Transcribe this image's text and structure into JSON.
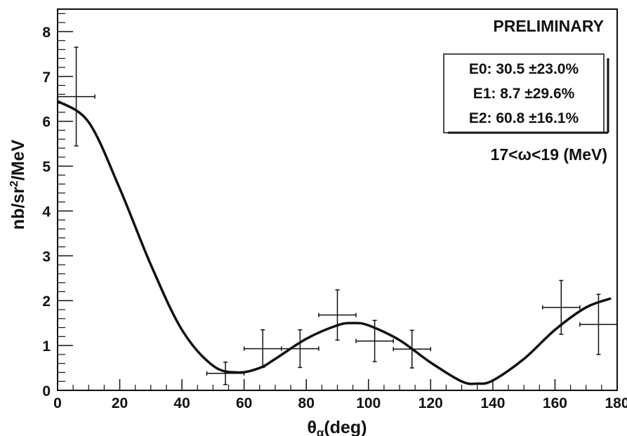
{
  "chart_data": {
    "type": "scatter",
    "title": "PRELIMINARY",
    "xlabel": "θα(deg)",
    "xlabel_main": "θ",
    "xlabel_sub": "α",
    "xlabel_suffix": "(deg)",
    "ylabel": "nb/sr²/MeV",
    "ylabel_pre": "nb/sr",
    "ylabel_sup": "2",
    "ylabel_post": "/MeV",
    "xlim": [
      0,
      180
    ],
    "ylim": [
      0,
      8.5
    ],
    "xticks": [
      "0",
      "20",
      "40",
      "60",
      "80",
      "100",
      "120",
      "140",
      "160",
      "180"
    ],
    "yticks": [
      "0",
      "1",
      "2",
      "3",
      "4",
      "5",
      "6",
      "7",
      "8"
    ],
    "grid": false,
    "legend_box": [
      "E0: 30.5 ±23.0%",
      "E1: 8.7 ±29.6%",
      "E2: 60.8 ±16.1%"
    ],
    "annotation": "17<ω<19 (MeV)",
    "series": [
      {
        "kind": "points-with-errors",
        "points": [
          {
            "x": 6,
            "y": 6.55,
            "xerr": 6,
            "yerr": 1.1
          },
          {
            "x": 54,
            "y": 0.38,
            "xerr": 6,
            "yerr": 0.25
          },
          {
            "x": 66,
            "y": 0.93,
            "xerr": 6,
            "yerr": 0.42
          },
          {
            "x": 78,
            "y": 0.93,
            "xerr": 6,
            "yerr": 0.42
          },
          {
            "x": 90,
            "y": 1.68,
            "xerr": 6,
            "yerr": 0.56
          },
          {
            "x": 102,
            "y": 1.1,
            "xerr": 6,
            "yerr": 0.46
          },
          {
            "x": 114,
            "y": 0.92,
            "xerr": 6,
            "yerr": 0.42
          },
          {
            "x": 162,
            "y": 1.85,
            "xerr": 6,
            "yerr": 0.6
          },
          {
            "x": 174,
            "y": 1.47,
            "xerr": 6,
            "yerr": 0.67
          }
        ]
      },
      {
        "kind": "fit-curve",
        "x": [
          0,
          10,
          20,
          30,
          40,
          50,
          58,
          65,
          70,
          80,
          90,
          95,
          100,
          110,
          120,
          130,
          135,
          140,
          150,
          160,
          170,
          178
        ],
        "y": [
          6.45,
          5.98,
          4.5,
          2.8,
          1.35,
          0.55,
          0.4,
          0.5,
          0.7,
          1.15,
          1.45,
          1.5,
          1.45,
          1.12,
          0.62,
          0.2,
          0.15,
          0.22,
          0.7,
          1.35,
          1.85,
          2.05
        ]
      }
    ]
  }
}
